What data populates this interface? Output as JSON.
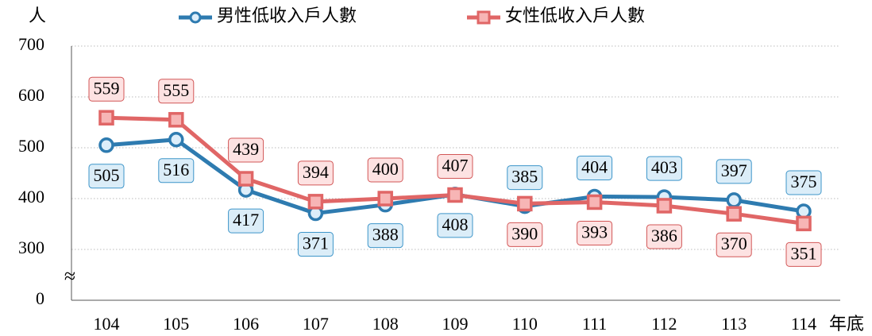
{
  "chart_data": {
    "type": "line",
    "y_label": "人",
    "x_label": "年底",
    "categories": [
      "104",
      "105",
      "106",
      "107",
      "108",
      "109",
      "110",
      "111",
      "112",
      "113",
      "114"
    ],
    "series": [
      {
        "name": "男性低收入戶人數",
        "color": "#2e7bb0",
        "values": [
          505,
          516,
          417,
          371,
          388,
          408,
          385,
          404,
          403,
          397,
          375
        ]
      },
      {
        "name": "女性低收入戶人數",
        "color": "#e06666",
        "values": [
          559,
          555,
          439,
          394,
          400,
          407,
          390,
          393,
          386,
          370,
          351
        ]
      }
    ],
    "ylim": [
      0,
      700
    ],
    "yticks": [
      0,
      300,
      400,
      500,
      600,
      700
    ],
    "ybreak": {
      "label": "≈",
      "range": [
        0,
        300
      ]
    },
    "grid": true,
    "legend": "top"
  }
}
